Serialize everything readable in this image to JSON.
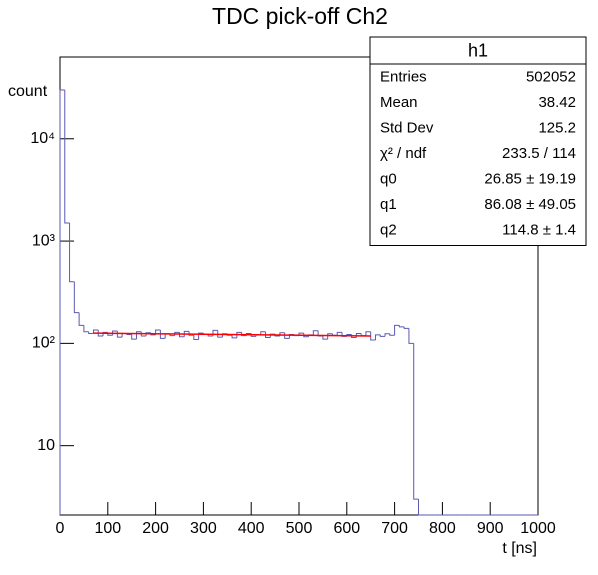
{
  "chart_data": {
    "type": "histogram",
    "title": "TDC pick-off Ch2",
    "xlabel": "t [ns]",
    "ylabel": "count",
    "color": "#5a5ab4",
    "log_y": true,
    "xlim": [
      0,
      1000
    ],
    "ylim": [
      2.1,
      63000
    ],
    "xticks": [
      0,
      100,
      200,
      300,
      400,
      500,
      600,
      700,
      800,
      900,
      1000
    ],
    "yticks": [
      10,
      {
        "value": 100,
        "label": "10²"
      },
      {
        "value": 1000,
        "label": "10³"
      },
      {
        "value": 10000,
        "label": "10⁴"
      }
    ],
    "bins": [
      0,
      10,
      20,
      30,
      40,
      50,
      60,
      70,
      80,
      90,
      100,
      110,
      120,
      130,
      140,
      150,
      160,
      170,
      180,
      190,
      200,
      210,
      220,
      230,
      240,
      250,
      260,
      270,
      280,
      290,
      300,
      310,
      320,
      330,
      340,
      350,
      360,
      370,
      380,
      390,
      400,
      410,
      420,
      430,
      440,
      450,
      460,
      470,
      480,
      490,
      500,
      510,
      520,
      530,
      540,
      550,
      560,
      570,
      580,
      590,
      600,
      610,
      620,
      630,
      640,
      650,
      660,
      670,
      680,
      690,
      700,
      710,
      720,
      730,
      740,
      750,
      760,
      770,
      780,
      790,
      800,
      810,
      820,
      830,
      840,
      850,
      860,
      870,
      880,
      890,
      900,
      910,
      920,
      930,
      940,
      950,
      960,
      970,
      980,
      990,
      1000
    ],
    "values": [
      30000,
      1500,
      400,
      200,
      150,
      130,
      125,
      135,
      118,
      128,
      120,
      132,
      115,
      125,
      122,
      110,
      130,
      118,
      127,
      121,
      135,
      112,
      124,
      119,
      128,
      116,
      131,
      120,
      109,
      126,
      122,
      118,
      134,
      115,
      124,
      120,
      113,
      128,
      119,
      125,
      117,
      121,
      130,
      114,
      123,
      118,
      127,
      112,
      122,
      119,
      126,
      116,
      121,
      133,
      118,
      110,
      124,
      120,
      128,
      117,
      122,
      114,
      125,
      119,
      130,
      108,
      121,
      117,
      124,
      120,
      150,
      145,
      140,
      100,
      3,
      0,
      0,
      0,
      0,
      0,
      0,
      0,
      0,
      0,
      0,
      0,
      0,
      0,
      0,
      0,
      0,
      0,
      0,
      0,
      0,
      0,
      0,
      0,
      0,
      0
    ],
    "fit": {
      "color": "#ff0000",
      "x": [
        70,
        650
      ],
      "values": [
        126,
        118
      ]
    },
    "stats": {
      "title": "h1",
      "rows": [
        {
          "label": "Entries",
          "value": "502052"
        },
        {
          "label": "Mean",
          "value": "38.42"
        },
        {
          "label": "Std Dev",
          "value": "125.2"
        },
        {
          "label": "χ² / ndf",
          "value": "233.5 / 114"
        },
        {
          "label": "q0",
          "value": "26.85 ± 19.19"
        },
        {
          "label": "q1",
          "value": "86.08 ± 49.05"
        },
        {
          "label": "q2",
          "value": "114.8 ± 1.4"
        }
      ]
    }
  }
}
